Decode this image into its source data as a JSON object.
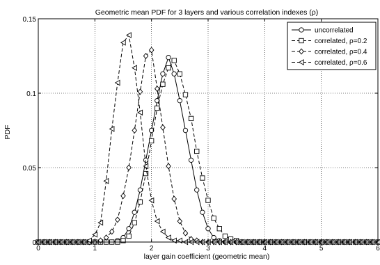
{
  "chart_data": {
    "type": "line",
    "title": "Geometric mean PDF for 3 layers and various correlation indexes (ρ)",
    "xlabel": "layer gain coefficient (geometric mean)",
    "ylabel": "PDF",
    "xlim": [
      0,
      6
    ],
    "ylim": [
      0,
      0.15
    ],
    "xticks": [
      "0",
      "1",
      "2",
      "3",
      "4",
      "5",
      "6"
    ],
    "yticks": [
      "0",
      "0.05",
      "0.1",
      "0.15"
    ],
    "grid": true,
    "legend_position": "top-right",
    "series": [
      {
        "name": "uncorrelated",
        "marker": "circle",
        "dash": "solid",
        "x": [
          0.0,
          0.1,
          0.2,
          0.3,
          0.4,
          0.5,
          0.6,
          0.7,
          0.8,
          0.9,
          1.0,
          1.1,
          1.2,
          1.3,
          1.4,
          1.5,
          1.6,
          1.7,
          1.8,
          1.9,
          2.0,
          2.1,
          2.2,
          2.3,
          2.4,
          2.5,
          2.6,
          2.7,
          2.8,
          2.9,
          3.0,
          3.1,
          3.2,
          3.3,
          3.4,
          3.5,
          3.6,
          3.7,
          3.8,
          3.9,
          4.0,
          4.1,
          4.2,
          4.3,
          4.4,
          4.5,
          4.6,
          4.7,
          4.8,
          4.9,
          5.0,
          5.1,
          5.2,
          5.3,
          5.4,
          5.5,
          5.6,
          5.7,
          5.8,
          5.9,
          6.0
        ],
        "y": [
          0,
          0,
          0,
          0,
          0,
          0,
          0,
          0,
          0,
          0,
          0,
          0,
          0,
          0,
          0.001,
          0.003,
          0.009,
          0.02,
          0.035,
          0.055,
          0.075,
          0.095,
          0.113,
          0.124,
          0.113,
          0.095,
          0.075,
          0.055,
          0.035,
          0.02,
          0.009,
          0.003,
          0.001,
          0,
          0,
          0,
          0,
          0,
          0,
          0,
          0,
          0,
          0,
          0,
          0,
          0,
          0,
          0,
          0,
          0,
          0,
          0,
          0,
          0,
          0,
          0,
          0,
          0,
          0,
          0,
          0
        ]
      },
      {
        "name": "correlated, ρ=0.2",
        "marker": "square",
        "dash": "dashed",
        "x": [
          0.0,
          0.1,
          0.2,
          0.3,
          0.4,
          0.5,
          0.6,
          0.7,
          0.8,
          0.9,
          1.0,
          1.1,
          1.2,
          1.3,
          1.4,
          1.5,
          1.6,
          1.7,
          1.8,
          1.9,
          2.0,
          2.1,
          2.2,
          2.3,
          2.4,
          2.5,
          2.6,
          2.7,
          2.8,
          2.9,
          3.0,
          3.1,
          3.2,
          3.3,
          3.4,
          3.5,
          3.6,
          3.7,
          3.8,
          3.9,
          4.0,
          4.1,
          4.2,
          4.3,
          4.4,
          4.5,
          4.6,
          4.7,
          4.8,
          4.9,
          5.0,
          5.1,
          5.2,
          5.3,
          5.4,
          5.5,
          5.6,
          5.7,
          5.8,
          5.9,
          6.0
        ],
        "y": [
          0,
          0,
          0,
          0,
          0,
          0,
          0,
          0,
          0,
          0,
          0,
          0,
          0,
          0,
          0,
          0.001,
          0.004,
          0.013,
          0.027,
          0.046,
          0.068,
          0.09,
          0.106,
          0.117,
          0.122,
          0.113,
          0.099,
          0.083,
          0.061,
          0.043,
          0.028,
          0.016,
          0.009,
          0.004,
          0.002,
          0.001,
          0,
          0,
          0,
          0,
          0,
          0,
          0,
          0,
          0,
          0,
          0,
          0,
          0,
          0,
          0,
          0,
          0,
          0,
          0,
          0,
          0,
          0,
          0,
          0,
          0
        ]
      },
      {
        "name": "correlated, ρ=0.4",
        "marker": "diamond",
        "dash": "dashed",
        "x": [
          0.0,
          0.1,
          0.2,
          0.3,
          0.4,
          0.5,
          0.6,
          0.7,
          0.8,
          0.9,
          1.0,
          1.1,
          1.2,
          1.3,
          1.4,
          1.5,
          1.6,
          1.7,
          1.8,
          1.9,
          2.0,
          2.1,
          2.2,
          2.3,
          2.4,
          2.5,
          2.6,
          2.7,
          2.8,
          2.9,
          3.0,
          3.1,
          3.2,
          3.3,
          3.4,
          3.5,
          3.6,
          3.7,
          3.8,
          3.9,
          4.0,
          4.1,
          4.2,
          4.3,
          4.4,
          4.5,
          4.6,
          4.7,
          4.8,
          4.9,
          5.0,
          5.1,
          5.2,
          5.3,
          5.4,
          5.5,
          5.6,
          5.7,
          5.8,
          5.9,
          6.0
        ],
        "y": [
          0,
          0,
          0,
          0,
          0,
          0,
          0,
          0,
          0,
          0,
          0,
          0.001,
          0.003,
          0.007,
          0.015,
          0.031,
          0.05,
          0.075,
          0.101,
          0.125,
          0.129,
          0.103,
          0.077,
          0.051,
          0.029,
          0.014,
          0.006,
          0.002,
          0.001,
          0,
          0,
          0,
          0,
          0,
          0,
          0,
          0,
          0,
          0,
          0,
          0,
          0,
          0,
          0,
          0,
          0,
          0,
          0,
          0,
          0,
          0,
          0,
          0,
          0,
          0,
          0,
          0,
          0,
          0,
          0,
          0
        ]
      },
      {
        "name": "correlated, ρ=0.6",
        "marker": "triangle-left",
        "dash": "dashed",
        "x": [
          0.0,
          0.1,
          0.2,
          0.3,
          0.4,
          0.5,
          0.6,
          0.7,
          0.8,
          0.9,
          1.0,
          1.1,
          1.2,
          1.3,
          1.4,
          1.5,
          1.6,
          1.7,
          1.8,
          1.9,
          2.0,
          2.1,
          2.2,
          2.3,
          2.4,
          2.5,
          2.6,
          2.7,
          2.8,
          2.9,
          3.0,
          3.1,
          3.2,
          3.3,
          3.4,
          3.5,
          3.6,
          3.7,
          3.8,
          3.9,
          4.0,
          4.1,
          4.2,
          4.3,
          4.4,
          4.5,
          4.6,
          4.7,
          4.8,
          4.9,
          5.0,
          5.1,
          5.2,
          5.3,
          5.4,
          5.5,
          5.6,
          5.7,
          5.8,
          5.9,
          6.0
        ],
        "y": [
          0,
          0,
          0,
          0,
          0,
          0,
          0,
          0,
          0,
          0.001,
          0.005,
          0.013,
          0.041,
          0.076,
          0.107,
          0.134,
          0.139,
          0.117,
          0.087,
          0.051,
          0.028,
          0.014,
          0.007,
          0.003,
          0.001,
          0.001,
          0,
          0,
          0,
          0,
          0,
          0,
          0,
          0,
          0,
          0,
          0,
          0,
          0,
          0,
          0,
          0,
          0,
          0,
          0,
          0,
          0,
          0,
          0,
          0,
          0,
          0,
          0,
          0,
          0,
          0,
          0,
          0,
          0,
          0,
          0
        ]
      }
    ]
  }
}
